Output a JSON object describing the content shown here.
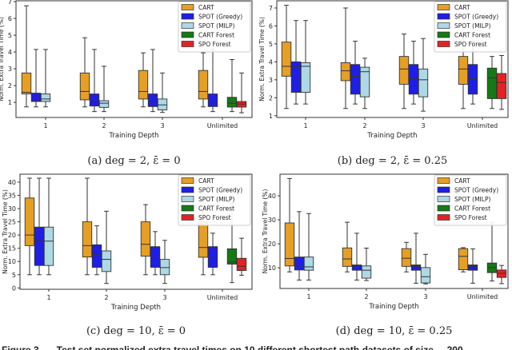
{
  "figure_caption": "Figure 3. — Test set normalized extra travel times on 10 different shortest path datasets of size ... 200",
  "legend": [
    "CART",
    "SPOT (Greedy)",
    "SPOT (MILP)",
    "CART Forest",
    "SPO Forest"
  ],
  "colors": {
    "CART": "#e69f25",
    "SPOT (Greedy)": "#1e1ee6",
    "SPOT (MILP)": "#add8e6",
    "CART Forest": "#157a15",
    "SPO Forest": "#e52222"
  },
  "chart_data": [
    {
      "type": "box",
      "caption": "(a) deg = 2, ε̄ = 0",
      "xlabel": "Training Depth",
      "ylabel": "Norm. Extra Travel Time (%)",
      "categories": [
        "1",
        "2",
        "3",
        "Unlimited"
      ],
      "ylim": [
        0.1,
        7.05
      ],
      "yticks": [
        1,
        2,
        3,
        4,
        5,
        6,
        7
      ],
      "legend_position": "top-right",
      "box_stats_order": [
        "whisker_low",
        "q1",
        "median",
        "q3",
        "whisker_high"
      ],
      "series": [
        {
          "name": "CART",
          "values": [
            [
              0.73,
              1.5,
              1.6,
              2.75,
              6.75
            ],
            [
              0.73,
              1.15,
              1.65,
              2.75,
              4.85
            ],
            [
              0.73,
              1.2,
              1.65,
              2.9,
              3.95
            ],
            [
              0.73,
              1.2,
              1.65,
              2.9,
              3.95
            ]
          ]
        },
        {
          "name": "SPOT (Greedy)",
          "values": [
            [
              0.73,
              1.05,
              1.15,
              1.55,
              4.15
            ],
            [
              0.45,
              0.78,
              1.05,
              1.5,
              4.15
            ],
            [
              0.45,
              0.75,
              1.05,
              1.5,
              4.15
            ],
            [
              0.45,
              0.75,
              1.05,
              1.5,
              4.15
            ]
          ]
        },
        {
          "name": "SPOT (MILP)",
          "values": [
            [
              0.73,
              1.05,
              1.2,
              1.5,
              4.15
            ],
            [
              0.45,
              0.7,
              0.95,
              1.1,
              3.15
            ],
            [
              0.4,
              0.55,
              0.85,
              1.2,
              2.75
            ],
            null
          ]
        },
        {
          "name": "CART Forest",
          "values": [
            null,
            null,
            null,
            [
              0.45,
              0.72,
              0.95,
              1.3,
              3.55
            ]
          ]
        },
        {
          "name": "SPO Forest",
          "values": [
            null,
            null,
            null,
            [
              0.38,
              0.72,
              0.9,
              1.05,
              2.75
            ]
          ]
        }
      ]
    },
    {
      "type": "box",
      "caption": "(b) deg = 2, ε̄ = 0.25",
      "xlabel": "Training Depth",
      "ylabel": "Norm. Extra Travel Time (%)",
      "categories": [
        "1",
        "2",
        "3",
        "Unlimited"
      ],
      "ylim": [
        0.9,
        7.4
      ],
      "yticks": [
        1,
        2,
        3,
        4,
        5,
        6,
        7
      ],
      "legend_position": "top-right",
      "box_stats_order": [
        "whisker_low",
        "q1",
        "median",
        "q3",
        "whisker_high"
      ],
      "series": [
        {
          "name": "CART",
          "values": [
            [
              1.4,
              3.2,
              3.75,
              5.1,
              7.15
            ],
            [
              1.4,
              2.95,
              3.5,
              3.95,
              7.0
            ],
            [
              1.4,
              2.75,
              3.6,
              4.3,
              5.55
            ],
            [
              1.4,
              2.75,
              3.6,
              4.3,
              5.55
            ]
          ]
        },
        {
          "name": "SPOT (Greedy)",
          "values": [
            [
              1.65,
              2.3,
              3.75,
              4.0,
              6.3
            ],
            [
              1.65,
              2.2,
              3.2,
              3.85,
              5.15
            ],
            [
              1.65,
              2.2,
              3.05,
              3.85,
              5.15
            ],
            [
              1.65,
              2.2,
              3.05,
              3.85,
              5.15
            ]
          ]
        },
        {
          "name": "SPOT (MILP)",
          "values": [
            [
              1.65,
              2.3,
              3.75,
              3.95,
              6.3
            ],
            [
              1.4,
              2.05,
              3.45,
              3.7,
              4.2
            ],
            [
              1.25,
              2.05,
              3.0,
              3.6,
              5.3
            ],
            null
          ]
        },
        {
          "name": "CART Forest",
          "values": [
            null,
            null,
            null,
            [
              1.4,
              1.95,
              3.1,
              3.65,
              4.3
            ]
          ]
        },
        {
          "name": "SPO Forest",
          "values": [
            null,
            null,
            null,
            [
              1.35,
              1.95,
              2.85,
              3.35,
              4.35
            ]
          ]
        }
      ]
    },
    {
      "type": "box",
      "caption": "(c) deg = 10, ε̄ = 0",
      "xlabel": "Training Depth",
      "ylabel": "Norm. Extra Travel Time (%)",
      "categories": [
        "1",
        "2",
        "3",
        "Unlimited"
      ],
      "ylim": [
        -0.5,
        43
      ],
      "yticks": [
        0,
        5,
        10,
        15,
        20,
        25,
        30,
        35,
        40
      ],
      "legend_position": "top-right",
      "box_stats_order": [
        "whisker_low",
        "q1",
        "median",
        "q3",
        "whisker_high"
      ],
      "series": [
        {
          "name": "CART",
          "values": [
            [
              5,
              16,
              20,
              34,
              41.5
            ],
            [
              5,
              11.7,
              16,
              25,
              41.5
            ],
            [
              5,
              12,
              16.5,
              25,
              31.5
            ],
            [
              5,
              11.6,
              15.3,
              25,
              31.5
            ]
          ]
        },
        {
          "name": "SPOT (Greedy)",
          "values": [
            [
              5,
              8.5,
              17.7,
              23,
              41.5
            ],
            [
              5,
              7.8,
              12.8,
              16.3,
              23.5
            ],
            [
              5,
              7.8,
              10.8,
              15.6,
              21.3
            ],
            [
              5,
              7.8,
              10.8,
              15.6,
              20.7
            ]
          ]
        },
        {
          "name": "SPOT (MILP)",
          "values": [
            [
              5,
              8.5,
              17.7,
              23,
              41.5
            ],
            [
              1.7,
              6.2,
              10.8,
              14,
              29
            ],
            [
              1.7,
              5,
              7.7,
              10.8,
              18
            ],
            null
          ]
        },
        {
          "name": "CART Forest",
          "values": [
            null,
            null,
            null,
            [
              2,
              9,
              9.8,
              14.8,
              32
            ]
          ]
        },
        {
          "name": "SPO Forest",
          "values": [
            null,
            null,
            null,
            [
              4.8,
              6.6,
              8.2,
              11.2,
              18.8
            ]
          ]
        }
      ]
    },
    {
      "type": "box",
      "caption": "(d) deg = 10, ε̄ = 0.25",
      "xlabel": "Training Depth",
      "ylabel": "Norm. Extra Travel Time (%)",
      "categories": [
        "1",
        "2",
        "3",
        "Unlimited"
      ],
      "ylim": [
        1.4,
        49
      ],
      "yticks": [
        10,
        20,
        30,
        40
      ],
      "legend_position": "top-right",
      "box_stats_order": [
        "whisker_low",
        "q1",
        "median",
        "q3",
        "whisker_high"
      ],
      "series": [
        {
          "name": "CART",
          "values": [
            [
              8.3,
              10.8,
              13.9,
              28.7,
              47.2
            ],
            [
              8.3,
              10.6,
              13.7,
              18.3,
              29
            ],
            [
              8.3,
              10.6,
              14,
              18,
              20.6
            ],
            [
              8.3,
              9.2,
              14.8,
              18,
              18.4
            ]
          ]
        },
        {
          "name": "SPOT (Greedy)",
          "values": [
            [
              4.9,
              9.1,
              10.8,
              14.5,
              33.4
            ],
            [
              4.9,
              9,
              10.3,
              11.2,
              24.4
            ],
            [
              3.6,
              9,
              10.6,
              11.2,
              24.4
            ],
            [
              3.6,
              9,
              10.6,
              11.2,
              17.9
            ]
          ]
        },
        {
          "name": "SPOT (MILP)",
          "values": [
            [
              4.9,
              9,
              10.4,
              14.5,
              32.6
            ],
            [
              4.7,
              5.7,
              9,
              10.8,
              18.2
            ],
            [
              3.3,
              3.7,
              6.3,
              10.1,
              15.6
            ],
            null
          ]
        },
        {
          "name": "CART Forest",
          "values": [
            null,
            null,
            null,
            [
              4.5,
              8,
              10.1,
              12,
              29
            ]
          ]
        },
        {
          "name": "SPO Forest",
          "values": [
            null,
            null,
            null,
            [
              3.4,
              6,
              7.7,
              9.1,
              11
            ]
          ]
        }
      ]
    }
  ]
}
